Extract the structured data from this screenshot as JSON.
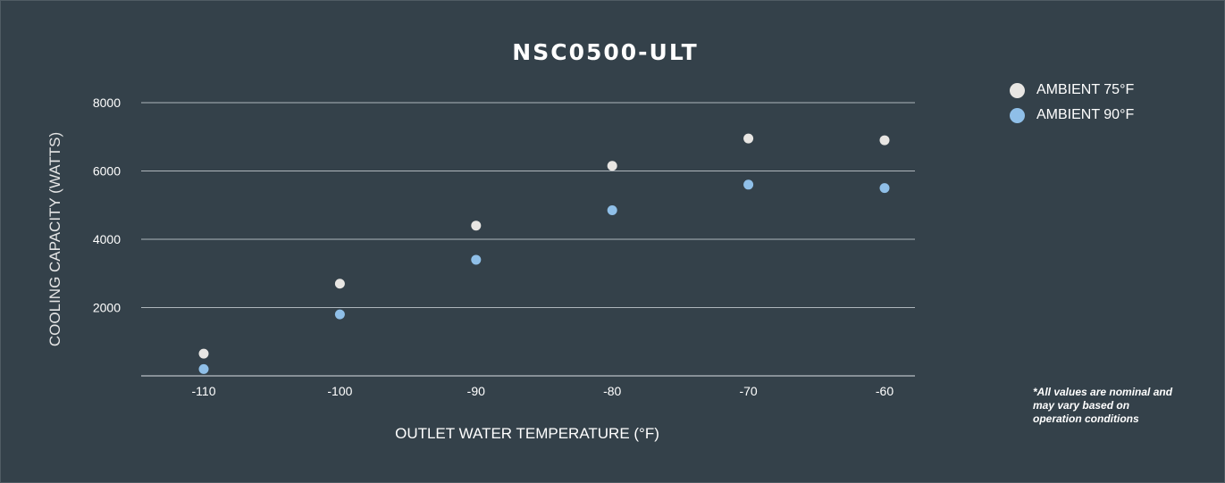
{
  "chart_data": {
    "type": "scatter",
    "title": "NSC0500-ULT",
    "xlabel": "OUTLET WATER TEMPERATURE (°F)",
    "ylabel": "COOLING CAPACITY (WATTS)",
    "x": [
      -110,
      -100,
      -90,
      -80,
      -70,
      -60
    ],
    "x_ticks": [
      "-110",
      "-100",
      "-90",
      "-80",
      "-70",
      "-60"
    ],
    "y_ticks": [
      "2000",
      "4000",
      "6000",
      "8000"
    ],
    "ylim": [
      0,
      8000
    ],
    "grid": true,
    "legend_position": "top-right",
    "series": [
      {
        "name": "AMBIENT 75°F",
        "color": "#e8e6e3",
        "values": [
          650,
          2700,
          4400,
          6150,
          6950,
          6900
        ]
      },
      {
        "name": "AMBIENT 90°F",
        "color": "#8fbfe8",
        "values": [
          200,
          1800,
          3400,
          4850,
          5600,
          5500
        ]
      }
    ]
  },
  "note": "*All values are nominal and may vary based on operation conditions"
}
